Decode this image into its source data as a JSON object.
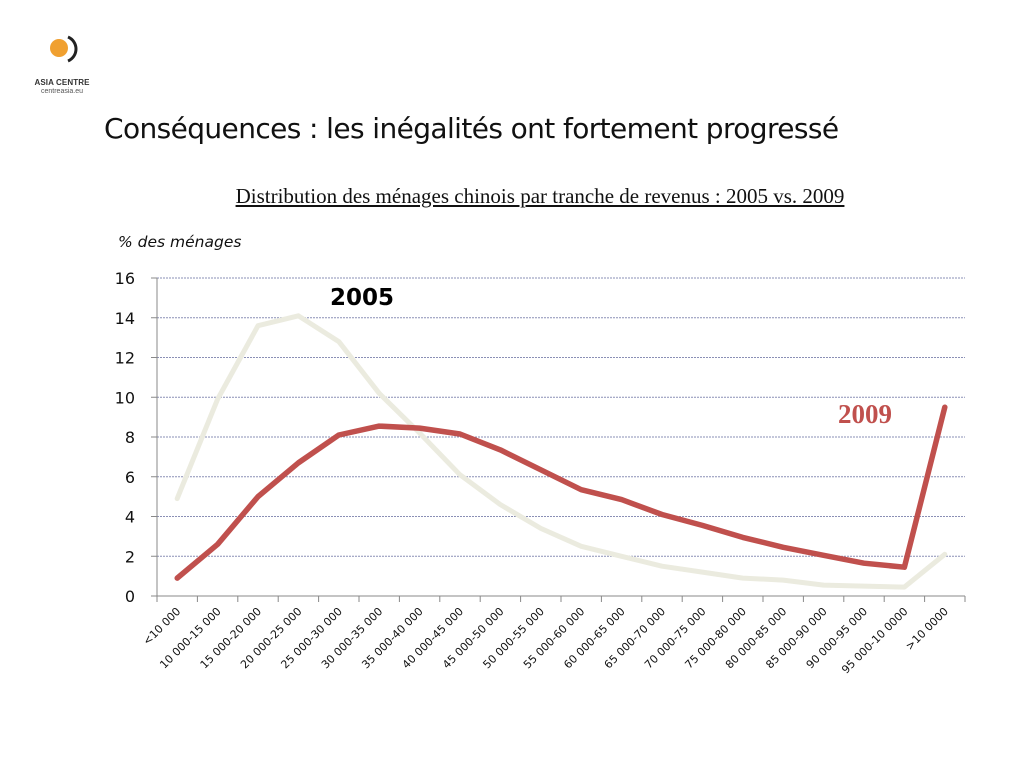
{
  "logo": {
    "name": "ASIA CENTRE",
    "url": "centreasia.eu",
    "colors": {
      "sun": "#F0A030",
      "arc": "#222222"
    }
  },
  "slide": {
    "title": "Conséquences : les inégalités ont fortement progressé"
  },
  "chart_data": {
    "type": "line",
    "title": "Distribution des ménages chinois par tranche de revenus : 2005 vs. 2009",
    "ylabel": "% des ménages",
    "xlabel": "",
    "ylim": [
      0,
      16
    ],
    "yticks": [
      0,
      2,
      4,
      6,
      8,
      10,
      12,
      14,
      16
    ],
    "grid": true,
    "categories": [
      "<10 000",
      "10 000-15 000",
      "15 000-20 000",
      "20 000-25 000",
      "25 000-30 000",
      "30 000-35 000",
      "35 000-40 000",
      "40 000-45 000",
      "45 000-50 000",
      "50 000-55 000",
      "55 000-60 000",
      "60 000-65 000",
      "65 000-70 000",
      "70 000-75 000",
      "75 000-80 000",
      "80 000-85 000",
      "85 000-90 000",
      "90 000-95 000",
      "95 000-10 0000",
      ">10 0000"
    ],
    "series": [
      {
        "name": "2005",
        "color": "#EBEBDF",
        "values": [
          4.9,
          9.9,
          13.6,
          14.1,
          12.8,
          10.2,
          8.2,
          6.1,
          4.6,
          3.4,
          2.5,
          2.0,
          1.5,
          1.2,
          0.9,
          0.8,
          0.55,
          0.5,
          0.45,
          2.1
        ]
      },
      {
        "name": "2009",
        "color": "#C0504D",
        "values": [
          0.9,
          2.6,
          5.0,
          6.7,
          8.1,
          8.55,
          8.45,
          8.15,
          7.35,
          6.35,
          5.35,
          4.85,
          4.1,
          3.55,
          2.95,
          2.45,
          2.05,
          1.65,
          1.45,
          9.5
        ]
      }
    ]
  }
}
